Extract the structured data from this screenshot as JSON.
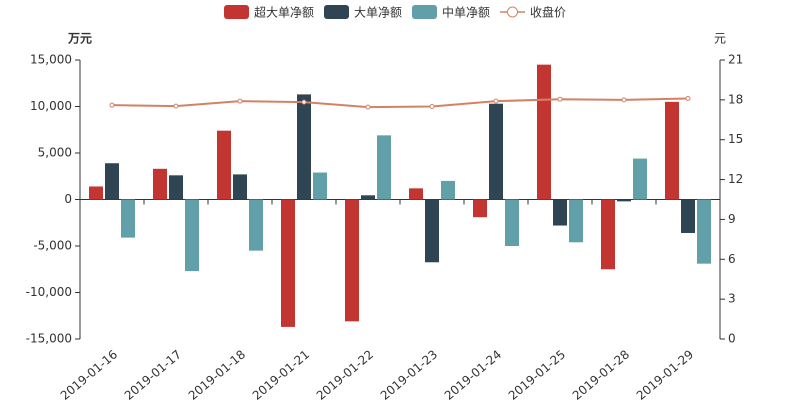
{
  "chart_data": {
    "type": "bar",
    "y_label": "万元",
    "y2_label": "元",
    "categories": [
      "2019-01-16",
      "2019-01-17",
      "2019-01-18",
      "2019-01-21",
      "2019-01-22",
      "2019-01-23",
      "2019-01-24",
      "2019-01-25",
      "2019-01-28",
      "2019-01-29"
    ],
    "series": [
      {
        "name": "超大单净额",
        "type": "bar",
        "color": "#c23531",
        "values": [
          1400,
          3300,
          7400,
          -13700,
          -13100,
          1200,
          -1900,
          14500,
          -7500,
          10500
        ]
      },
      {
        "name": "大单净额",
        "type": "bar",
        "color": "#2f4554",
        "values": [
          3900,
          2600,
          2700,
          11300,
          450,
          -6750,
          10300,
          -2800,
          -200,
          -3600
        ]
      },
      {
        "name": "中单净额",
        "type": "bar",
        "color": "#61a0a8",
        "values": [
          -4100,
          -7700,
          -5500,
          2900,
          6900,
          2000,
          -5000,
          -4600,
          4400,
          -6900
        ]
      },
      {
        "name": "收盘价",
        "type": "line",
        "axis": "y2",
        "color": "#d48265",
        "values": [
          17.6,
          17.53,
          17.9,
          17.83,
          17.45,
          17.5,
          17.9,
          18.05,
          18.0,
          18.1
        ]
      }
    ],
    "ylim": [
      -15000,
      15000
    ],
    "yticks": [
      {
        "value": -15000,
        "label": "-15,000"
      },
      {
        "value": -10000,
        "label": "-10,000"
      },
      {
        "value": -5000,
        "label": "-5,000"
      },
      0,
      {
        "value": 5000,
        "label": "5,000"
      },
      {
        "value": 10000,
        "label": "10,000"
      },
      {
        "value": 15000,
        "label": "15,000"
      }
    ],
    "y2lim": [
      0,
      21
    ],
    "y2ticks": [
      0,
      3,
      6,
      9,
      12,
      15,
      18,
      21
    ],
    "legend": "top",
    "grid": false
  }
}
